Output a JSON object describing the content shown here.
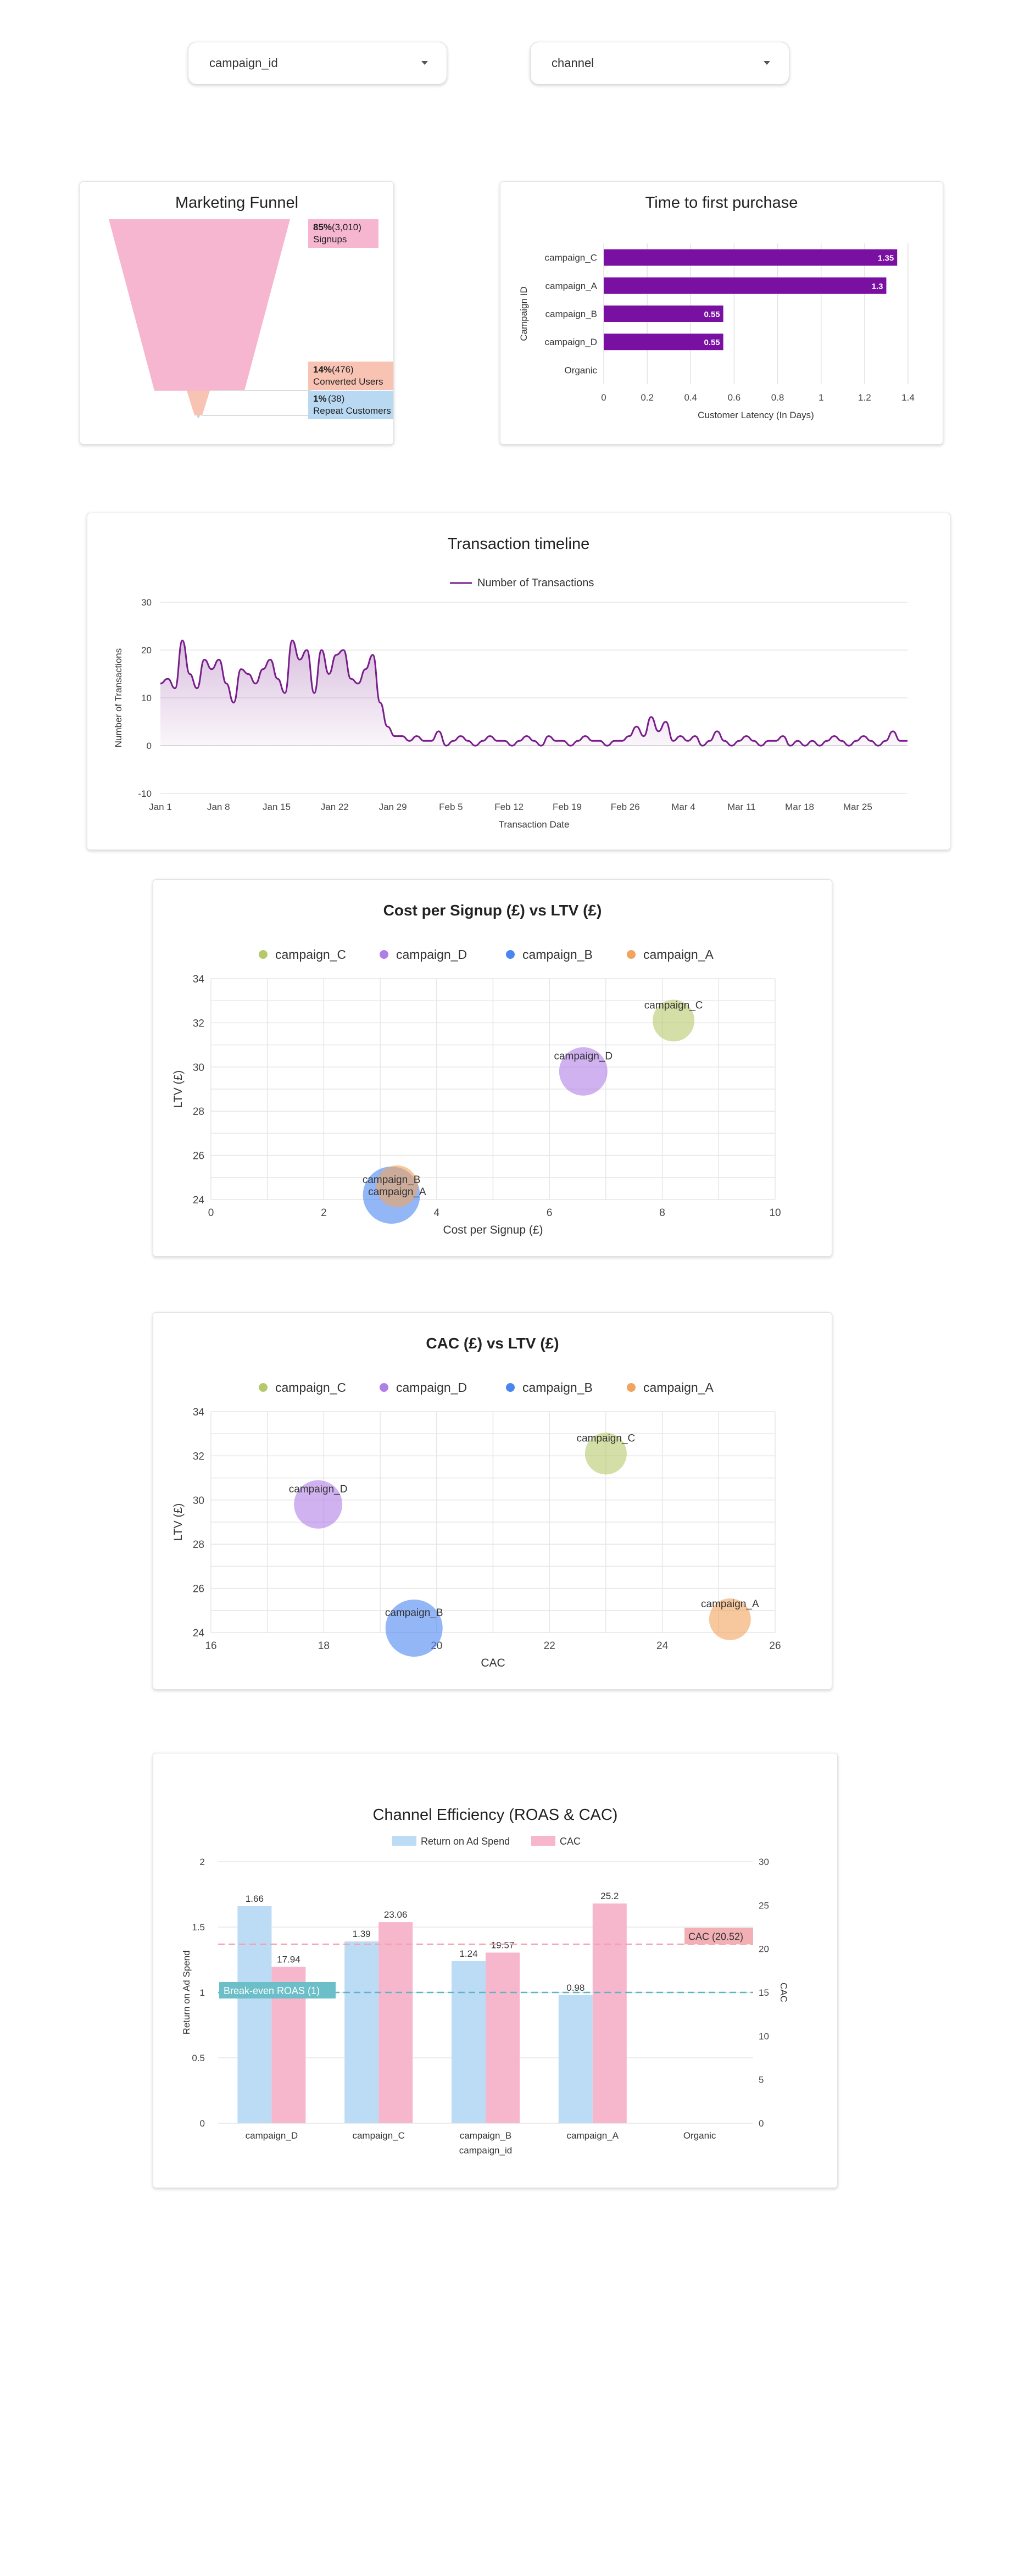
{
  "filters": {
    "campaign_label": "campaign_id",
    "channel_label": "channel"
  },
  "funnel": {
    "title": "Marketing Funnel",
    "stages": [
      {
        "pct": "85%",
        "count": "(3,010)",
        "name": "Signups",
        "fraction": 0.85,
        "color": "#f7b6cf"
      },
      {
        "pct": "14%",
        "count": "(476)",
        "name": "Converted Users",
        "fraction": 0.14,
        "color": "#f8c3b3"
      },
      {
        "pct": "1%",
        "count": "(38)",
        "name": "Repeat Customers",
        "fraction": 0.01,
        "color": "#b9d8f2"
      }
    ]
  },
  "latency": {
    "title": "Time to first purchase",
    "chart_data": {
      "type": "bar",
      "orientation": "horizontal",
      "categories": [
        "campaign_C",
        "campaign_A",
        "campaign_B",
        "campaign_D",
        "Organic"
      ],
      "values": [
        1.35,
        1.3,
        0.55,
        0.55,
        null
      ],
      "value_labels": [
        "1.35",
        "1.3",
        "0.55",
        "0.55",
        ""
      ],
      "xlabel": "Customer Latency (In Days)",
      "ylabel": "Campaign ID",
      "xlim": [
        0,
        1.4
      ],
      "xticks": [
        "0",
        "0.2",
        "0.4",
        "0.6",
        "0.8",
        "1",
        "1.2",
        "1.4"
      ],
      "color": "#7a10a2"
    }
  },
  "timeline": {
    "title": "Transaction timeline",
    "chart_data": {
      "type": "area",
      "series": [
        {
          "name": "Number of Transactions",
          "values": [
            13,
            14,
            12,
            22,
            15,
            12,
            18,
            16,
            18,
            13,
            9,
            16,
            15,
            13,
            16,
            18,
            14,
            11,
            22,
            18,
            20,
            11,
            20,
            15,
            19,
            20,
            14,
            13,
            16,
            19,
            9,
            4,
            2,
            2,
            1,
            2,
            1,
            1,
            3,
            0,
            1,
            2,
            1,
            0,
            1,
            2,
            1,
            1,
            0,
            1,
            2,
            1,
            0,
            2,
            1,
            1,
            0,
            1,
            2,
            1,
            1,
            0,
            1,
            1,
            2,
            4,
            2,
            6,
            3,
            5,
            1,
            2,
            1,
            2,
            0,
            1,
            3,
            1,
            0,
            1,
            2,
            1,
            0,
            1,
            1,
            2,
            0,
            1,
            0,
            1,
            0,
            1,
            2,
            1,
            0,
            1,
            2,
            1,
            0,
            1,
            3,
            1,
            1
          ]
        }
      ],
      "x_tick_labels": [
        "Jan 1",
        "Jan 8",
        "Jan 15",
        "Jan 22",
        "Jan 29",
        "Feb 5",
        "Feb 12",
        "Feb 19",
        "Feb 26",
        "Mar 4",
        "Mar 11",
        "Mar 18",
        "Mar 25"
      ],
      "yticks": [
        "-10",
        "0",
        "10",
        "20",
        "30"
      ],
      "ylim": [
        -10,
        30
      ],
      "xlabel": "Transaction Date",
      "ylabel": "Number of Transactions",
      "color": "#7a1d8c"
    }
  },
  "cps_ltv": {
    "title": "Cost per Signup (£) vs LTV (£)",
    "chart_data": {
      "type": "scatter",
      "series": [
        {
          "name": "campaign_C",
          "x": 8.2,
          "y": 32.1,
          "size": 38,
          "color": "#b5c96b"
        },
        {
          "name": "campaign_D",
          "x": 6.6,
          "y": 29.8,
          "size": 44,
          "color": "#b07fe6"
        },
        {
          "name": "campaign_B",
          "x": 3.2,
          "y": 24.2,
          "size": 52,
          "color": "#4a86f0"
        },
        {
          "name": "campaign_A",
          "x": 3.3,
          "y": 24.6,
          "size": 38,
          "color": "#f2a35e"
        }
      ],
      "xlim": [
        0,
        10
      ],
      "ylim": [
        24,
        34
      ],
      "xticks": [
        "0",
        "2",
        "4",
        "6",
        "8",
        "10"
      ],
      "yticks": [
        "24",
        "26",
        "28",
        "30",
        "32",
        "34"
      ],
      "xlabel": "Cost per Signup (£)",
      "ylabel": "LTV (£)"
    }
  },
  "cac_ltv": {
    "title": "CAC (£) vs LTV (£)",
    "chart_data": {
      "type": "scatter",
      "series": [
        {
          "name": "campaign_C",
          "x": 23.0,
          "y": 32.1,
          "size": 38,
          "color": "#b5c96b"
        },
        {
          "name": "campaign_D",
          "x": 17.9,
          "y": 29.8,
          "size": 44,
          "color": "#b07fe6"
        },
        {
          "name": "campaign_B",
          "x": 19.6,
          "y": 24.2,
          "size": 52,
          "color": "#4a86f0"
        },
        {
          "name": "campaign_A",
          "x": 25.2,
          "y": 24.6,
          "size": 38,
          "color": "#f2a35e"
        }
      ],
      "xlim": [
        16,
        26
      ],
      "ylim": [
        24,
        34
      ],
      "xticks": [
        "16",
        "18",
        "20",
        "22",
        "24",
        "26"
      ],
      "yticks": [
        "24",
        "26",
        "28",
        "30",
        "32",
        "34"
      ],
      "xlabel": "CAC",
      "ylabel": "LTV (£)"
    }
  },
  "efficiency": {
    "title": "Channel Efficiency (ROAS & CAC)",
    "chart_data": {
      "type": "bar",
      "categories": [
        "campaign_D",
        "campaign_C",
        "campaign_B",
        "campaign_A",
        "Organic"
      ],
      "series": [
        {
          "name": "Return on Ad Spend",
          "axis": "left",
          "values": [
            1.66,
            1.39,
            1.24,
            0.98,
            null
          ],
          "labels": [
            "1.66",
            "1.39",
            "1.24",
            "0.98",
            ""
          ],
          "color": "#bcdcf6"
        },
        {
          "name": "CAC",
          "axis": "right",
          "values": [
            17.94,
            23.06,
            19.57,
            25.2,
            null
          ],
          "labels": [
            "17.94",
            "23.06",
            "19.57",
            "25.2",
            ""
          ],
          "color": "#f6b6cc"
        }
      ],
      "ylim_left": [
        0,
        2
      ],
      "ylim_right": [
        0,
        30
      ],
      "yticks_left": [
        "0",
        "0.5",
        "1",
        "1.5",
        "2"
      ],
      "yticks_right": [
        "0",
        "5",
        "10",
        "15",
        "20",
        "25",
        "30"
      ],
      "xlabel": "campaign_id",
      "ylabel_left": "Return on Ad Spend",
      "ylabel_right": "CAC",
      "reference_lines": [
        {
          "label": "Break-even ROAS (1)",
          "axis": "left",
          "value": 1,
          "color": "#5fb3c9",
          "label_color": "#6cbfc9"
        },
        {
          "label": "CAC (20.52)",
          "axis": "right",
          "value": 20.52,
          "color": "#f3a0b0",
          "label_color": "#f2b0b5"
        }
      ]
    }
  }
}
